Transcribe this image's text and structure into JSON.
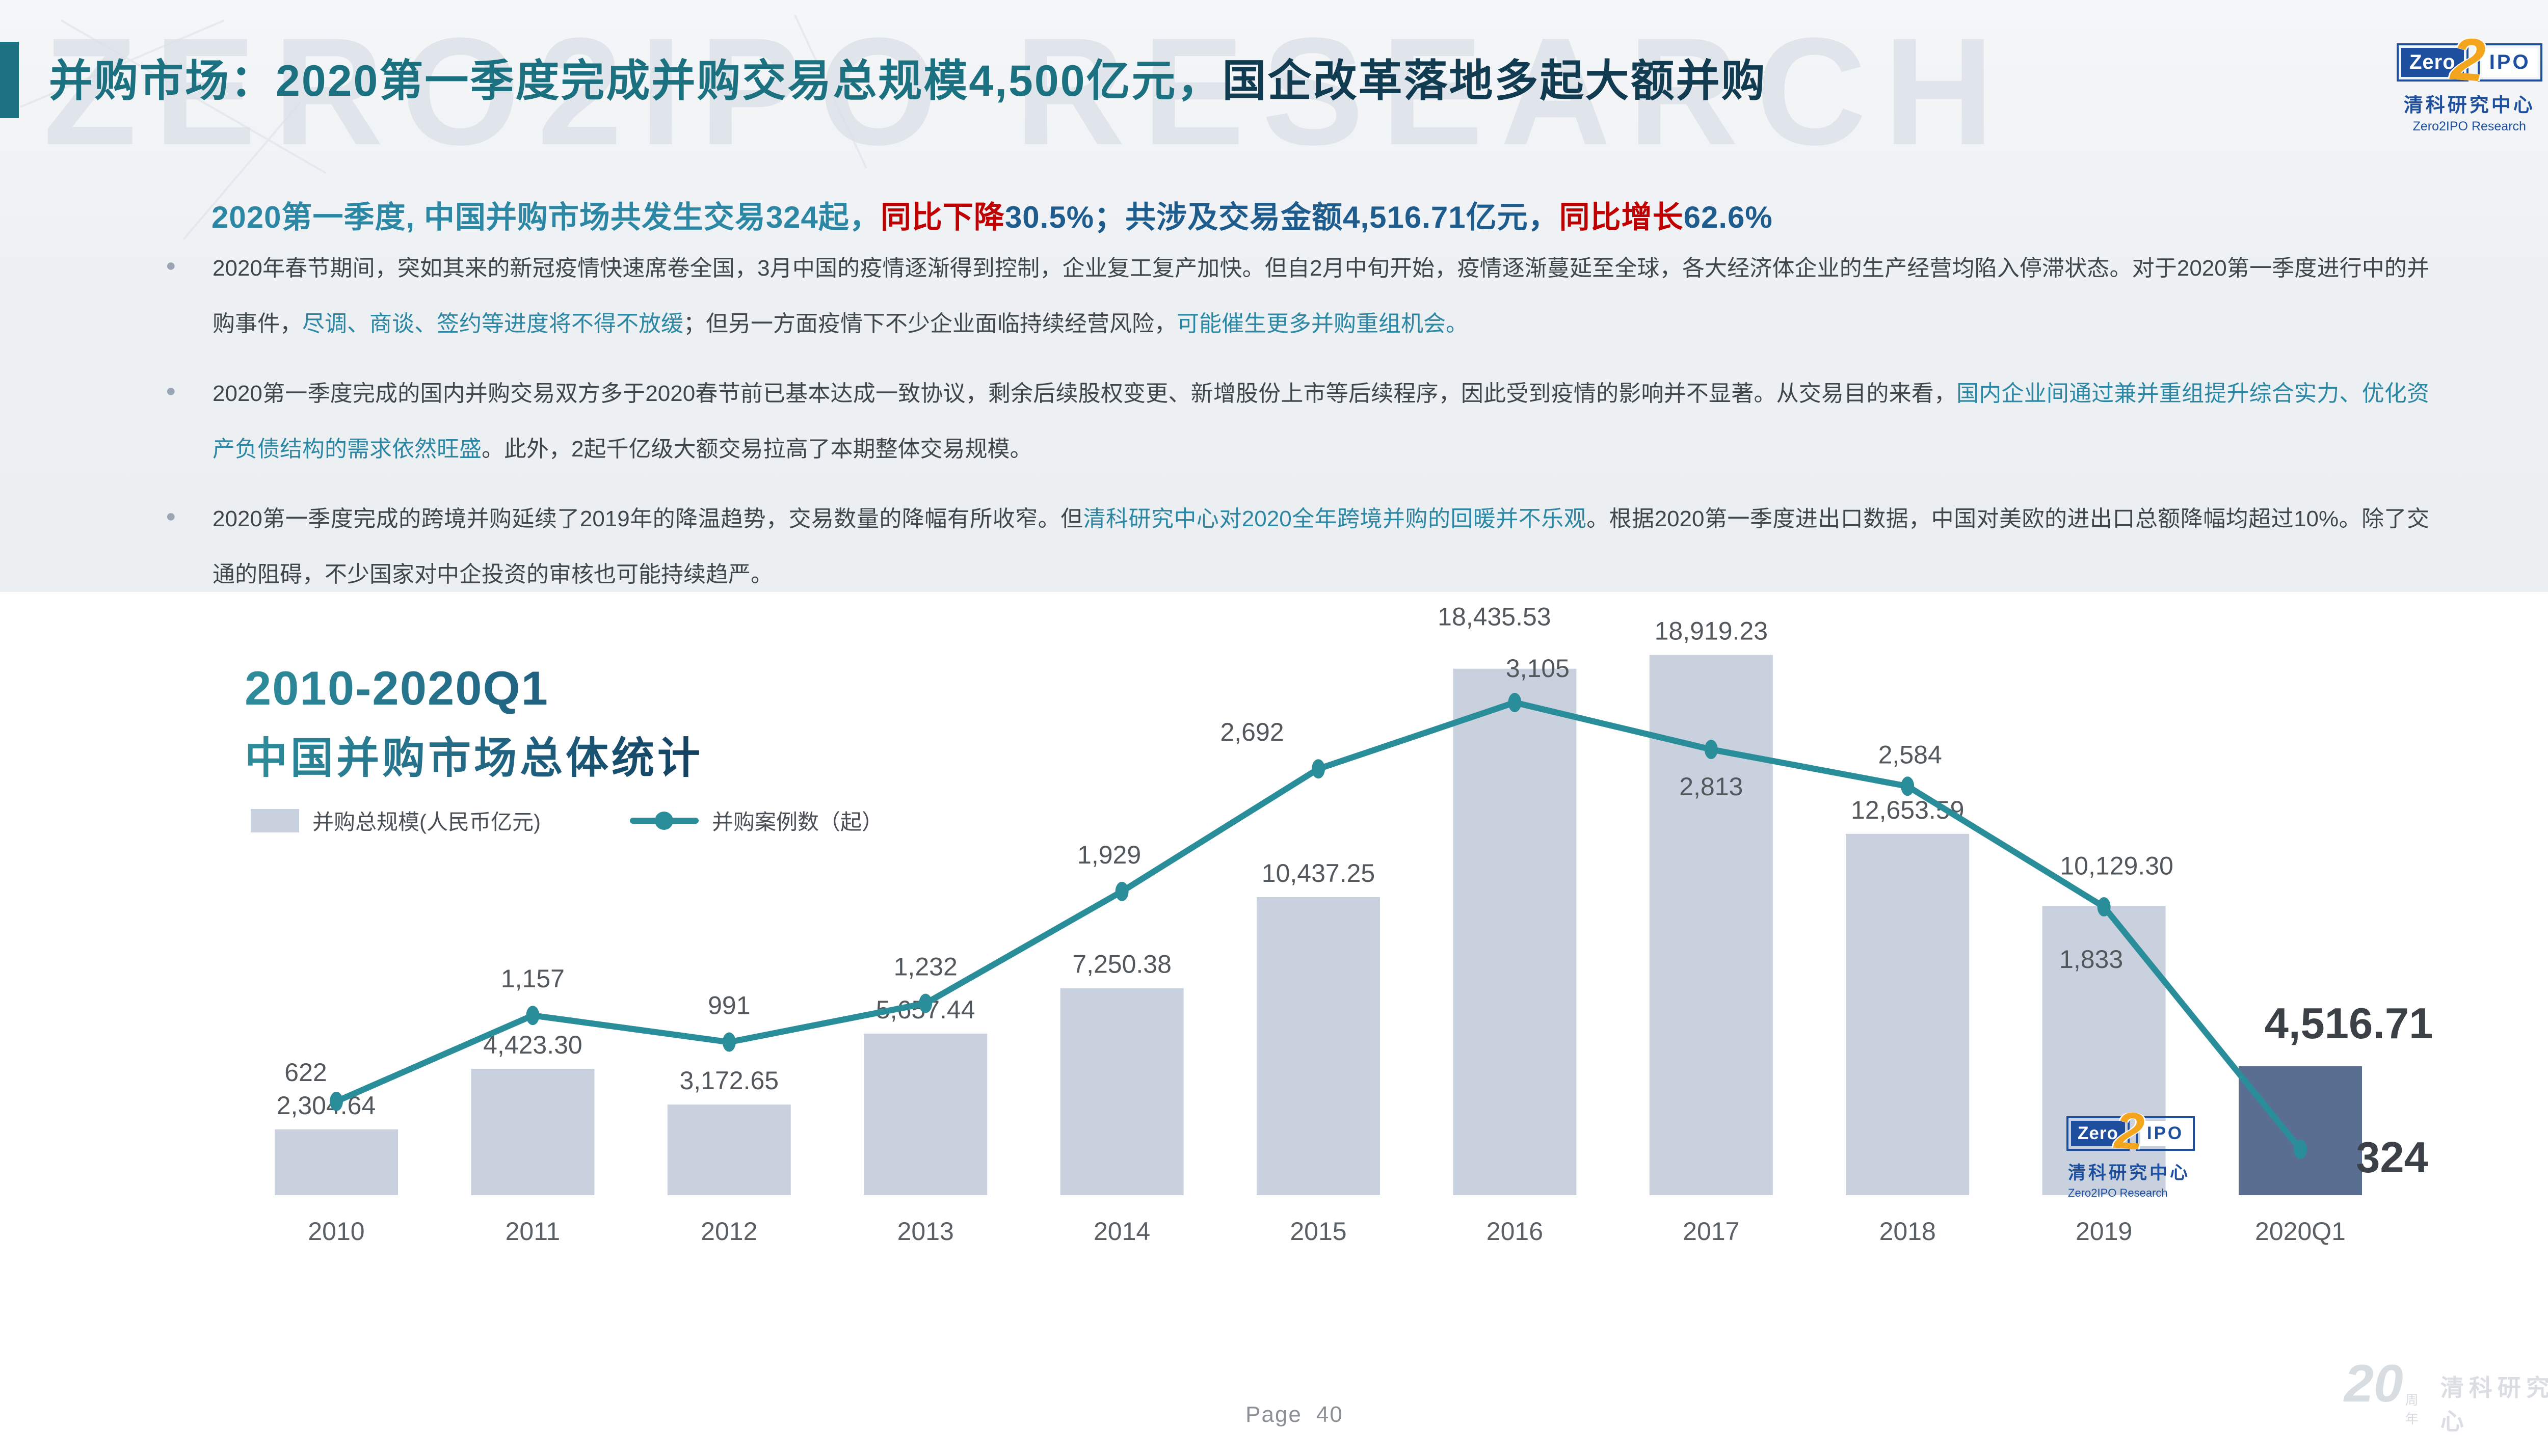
{
  "page": {
    "background": "#EEF1F4",
    "panel_background": "#FFFFFF"
  },
  "watermark": {
    "text": "ZERO2IPO RESEARCH"
  },
  "header": {
    "title_teal": "并购市场：2020第一季度完成并购交易总规模4,500亿元，",
    "title_navy": "国企改革落地多起大额并购",
    "accent_color": "#1B7180"
  },
  "logo": {
    "zero": "Zero",
    "two": "2",
    "ipo": "IPO",
    "cn": "清科研究中心",
    "en": "Zero2IPO Research",
    "blue": "#1D4F9E",
    "orange": "#F3A51D"
  },
  "subtitle": {
    "segments": [
      {
        "text": "2020第一季度, 中国并购市场共发生交易324起，",
        "style": "teal"
      },
      {
        "text": "同比下降",
        "style": "red"
      },
      {
        "text": "30.5%；",
        "style": "blue"
      },
      {
        "text": "共涉及交易金额4,516.71亿元，",
        "style": "blue"
      },
      {
        "text": "同比增长",
        "style": "red"
      },
      {
        "text": "62.6%",
        "style": "blue"
      }
    ]
  },
  "bullets": [
    {
      "segments": [
        {
          "text": "2020年春节期间，突如其来的新冠疫情快速席卷全国，3月中国的疫情逐渐得到控制，企业复工复产加快。但自2月中旬开始，疫情逐渐蔓延至全球，各大经济体企业的生产经营均陷入停滞状态。对于2020第一季度进行中的并购事件，",
          "style": "dark"
        },
        {
          "text": "尽调、商谈、签约等进度将不得不放缓",
          "style": "teal"
        },
        {
          "text": "；但另一方面疫情下不少企业面临持续经营风险，",
          "style": "dark"
        },
        {
          "text": "可能催生更多并购重组机会。",
          "style": "teal"
        }
      ]
    },
    {
      "segments": [
        {
          "text": "2020第一季度完成的国内并购交易双方多于2020春节前已基本达成一致协议，剩余后续股权变更、新增股份上市等后续程序，因此受到疫情的影响并不显著。从交易目的来看，",
          "style": "dark"
        },
        {
          "text": "国内企业间通过兼并重组提升综合实力、优化资产负债结构的需求依然旺盛",
          "style": "teal"
        },
        {
          "text": "。此外，2起千亿级大额交易拉高了本期整体交易规模。",
          "style": "dark"
        }
      ]
    },
    {
      "segments": [
        {
          "text": "2020第一季度完成的跨境并购延续了2019年的降温趋势，交易数量的降幅有所收窄。但",
          "style": "dark"
        },
        {
          "text": "清科研究中心对2020全年跨境并购的回暖并不乐观",
          "style": "teal"
        },
        {
          "text": "。根据2020第一季度进出口数据，中国对美欧的进出口总额降幅均超过10%。除了交通的阻碍，不少国家对中企投资的审核也可能持续趋严。",
          "style": "dark"
        }
      ]
    }
  ],
  "chart": {
    "title_line1": "2010-2020Q1",
    "title_line2": "中国并购市场总体统计",
    "legend_bar": "并购总规模(人民币亿元)",
    "legend_line": "并购案例数（起）"
  },
  "chart_data": {
    "type": "bar+line",
    "title": "2010-2020Q1 中国并购市场总体统计",
    "categories": [
      "2010",
      "2011",
      "2012",
      "2013",
      "2014",
      "2015",
      "2016",
      "2017",
      "2018",
      "2019",
      "2020Q1"
    ],
    "series": [
      {
        "name": "并购总规模(人民币亿元)",
        "type": "bar",
        "values": [
          2304.64,
          4423.3,
          3172.65,
          5657.44,
          7250.38,
          10437.25,
          18435.53,
          18919.23,
          12653.59,
          10129.3,
          4516.71
        ],
        "labels": [
          "2,304.64",
          "4,423.30",
          "3,172.65",
          "5,657.44",
          "7,250.38",
          "10,437.25",
          "18,435.53",
          "18,919.23",
          "12,653.59",
          "10,129.30",
          "4,516.71"
        ]
      },
      {
        "name": "并购案例数（起）",
        "type": "line",
        "values": [
          622,
          1157,
          991,
          1232,
          1929,
          2692,
          3105,
          2813,
          2584,
          1833,
          324
        ],
        "labels": [
          "622",
          "1,157",
          "991",
          "1,232",
          "1,929",
          "2,692",
          "3,105",
          "2,813",
          "2,584",
          "1,833",
          "324"
        ]
      }
    ],
    "bar_color": "#C8D1DD",
    "bar_color_highlight": "#5A6E91",
    "line_color": "#2A8D9A",
    "highlight_index": 10,
    "grid": false,
    "legend_position": "top-left",
    "ylim_bar": [
      0,
      21000
    ],
    "ylim_line": [
      0,
      3800
    ]
  },
  "footer": {
    "page_label": "Page",
    "page_number": "40",
    "anniv_number": "20",
    "anniv_suffix": "周年",
    "anniv_cn": "清科研究中心"
  }
}
